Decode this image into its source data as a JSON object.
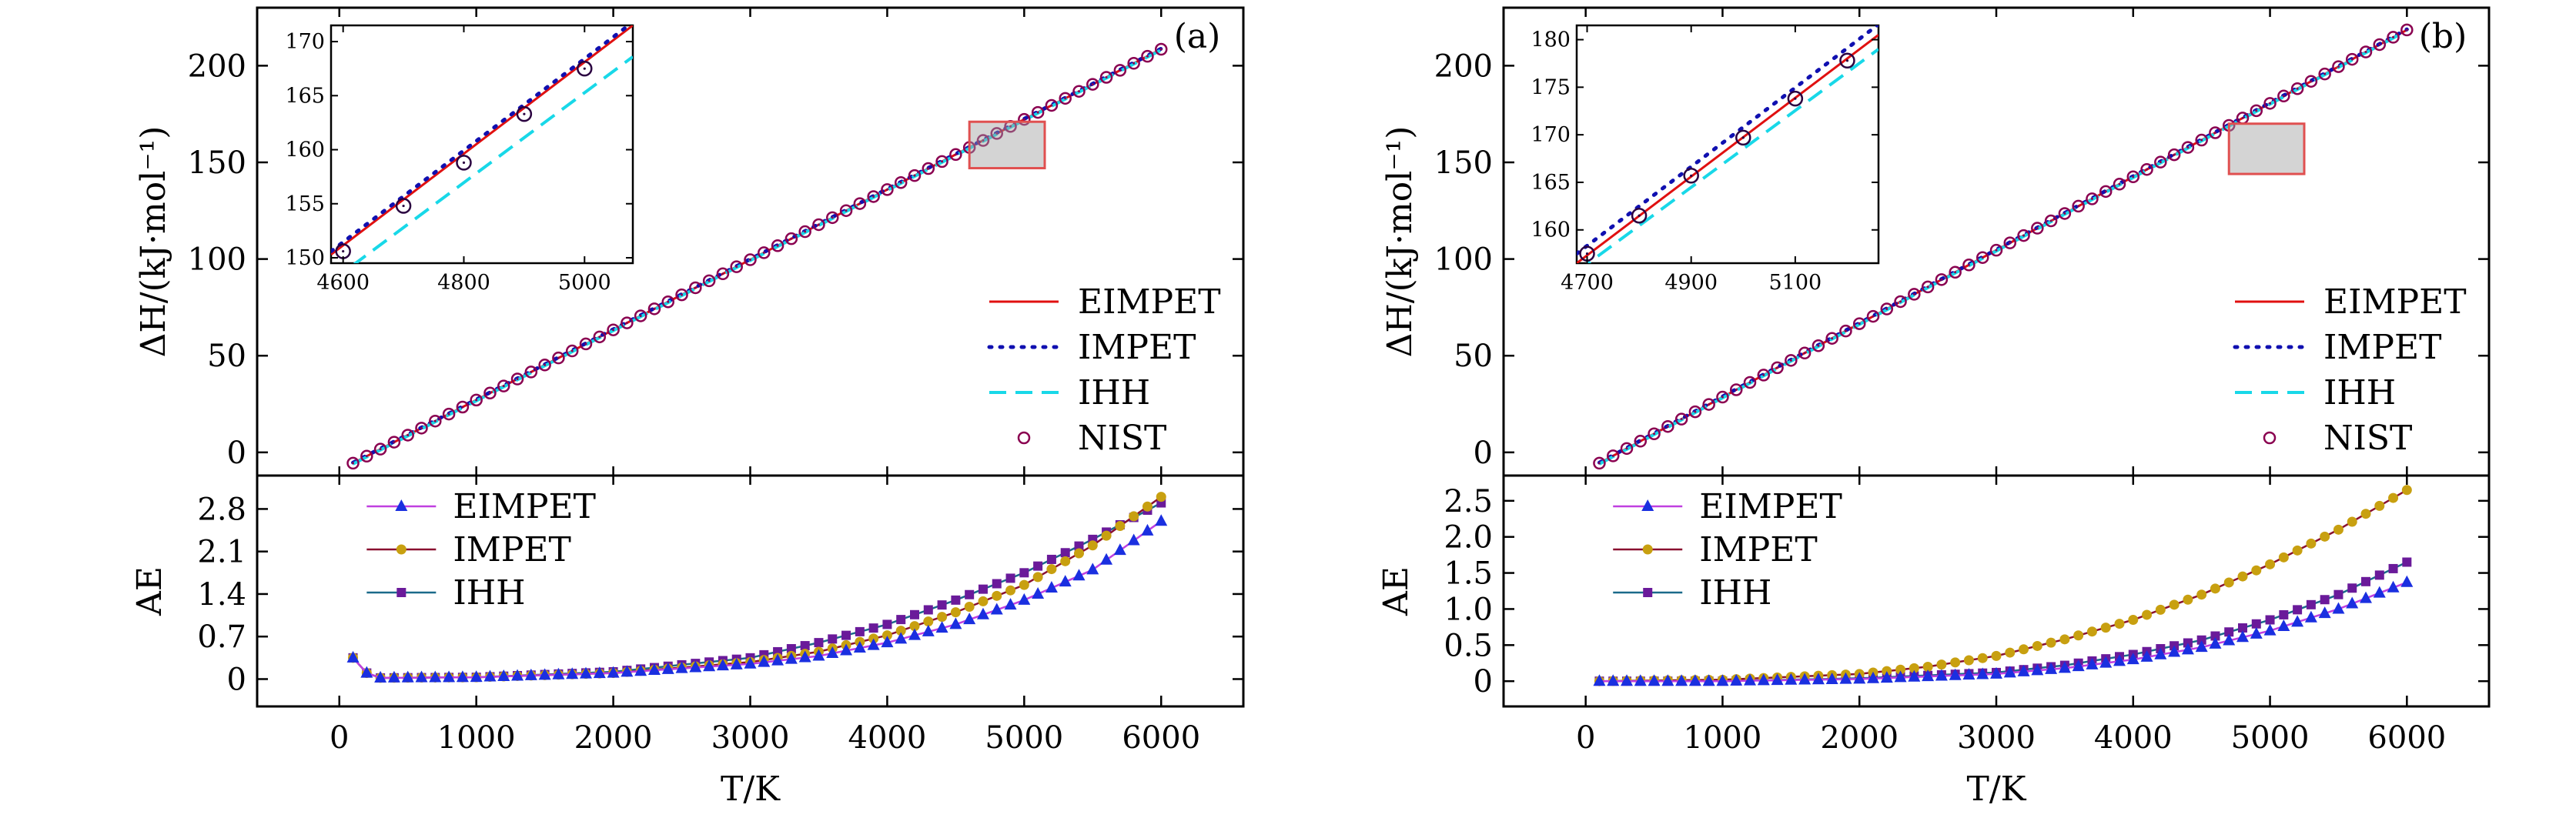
{
  "colors": {
    "EIMPET": "#e01010",
    "IMPET": "#1010b0",
    "IHH": "#18d8e8",
    "NIST": "#8a0050",
    "AE_EIMPET_marker": "#1a2fe0",
    "AE_EIMPET_line": "#c040e0",
    "AE_IMPET_marker": "#c8a010",
    "AE_IMPET_line": "#8a1030",
    "AE_IHH_marker": "#6a1a9a",
    "AE_IHH_line": "#1a6a8a",
    "zoom_box": "#e05050"
  },
  "chart_data": [
    {
      "panel_label": "(a)",
      "type": "line",
      "role": "enthalpy",
      "xlim": [
        -600,
        6600
      ],
      "ylim": [
        -12,
        230
      ],
      "yticks": [
        0,
        50,
        100,
        150,
        200
      ],
      "ylabel": "ΔH/(kJ·mol⁻¹)",
      "x_start": 100,
      "x_end": 6000,
      "y_start": -5.6,
      "y_end": 208.5,
      "series": [
        {
          "name": "EIMPET",
          "style": "solid"
        },
        {
          "name": "IMPET",
          "style": "dotted"
        },
        {
          "name": "IHH",
          "style": "dashed"
        },
        {
          "name": "NIST",
          "style": "circles"
        }
      ],
      "zoom_region": {
        "x": [
          4600,
          5150
        ],
        "y": [
          147,
          171
        ]
      },
      "inset": {
        "xlim": [
          4580,
          5080
        ],
        "ylim": [
          149.5,
          171.5
        ],
        "xticks": [
          4600,
          4800,
          5000
        ],
        "yticks": [
          150,
          155,
          160,
          165,
          170
        ],
        "EIMPET": {
          "x": [
            4580,
            5080
          ],
          "y": [
            150.3,
            171.5
          ]
        },
        "IMPET": {
          "x": [
            4580,
            5080
          ],
          "y": [
            150.6,
            171.8
          ]
        },
        "IHH": {
          "x": [
            4580,
            5080
          ],
          "y": [
            147.8,
            168.6
          ]
        },
        "NIST": {
          "x": [
            4600,
            4700,
            4800,
            4900,
            5000
          ],
          "y": [
            150.6,
            154.8,
            158.8,
            163.3,
            167.5
          ]
        }
      }
    },
    {
      "panel_label": "(a)",
      "type": "line",
      "role": "absolute-error",
      "xlim": [
        -600,
        6600
      ],
      "ylim": [
        -0.45,
        3.35
      ],
      "yticks": [
        0,
        0.7,
        1.4,
        2.1,
        2.8
      ],
      "ytick_labels": [
        "0",
        "0.7",
        "1.4",
        "2.1",
        "2.8"
      ],
      "xticks": [
        0,
        1000,
        2000,
        3000,
        4000,
        5000,
        6000
      ],
      "ylabel": "AE",
      "xlabel": "T/K",
      "series": [
        {
          "name": "EIMPET",
          "x": [
            100,
            200,
            300,
            1000,
            2000,
            3000,
            3500,
            4000,
            4500,
            5000,
            5500,
            6000
          ],
          "y": [
            0.35,
            0.1,
            0.02,
            0.03,
            0.1,
            0.25,
            0.38,
            0.6,
            0.9,
            1.3,
            1.8,
            2.6
          ]
        },
        {
          "name": "IMPET",
          "x": [
            100,
            200,
            300,
            1000,
            2000,
            3000,
            3500,
            4000,
            4500,
            5000,
            5500,
            6000
          ],
          "y": [
            0.35,
            0.1,
            0.02,
            0.03,
            0.1,
            0.28,
            0.45,
            0.72,
            1.1,
            1.55,
            2.2,
            3.0
          ]
        },
        {
          "name": "IHH",
          "x": [
            100,
            200,
            300,
            1000,
            2000,
            3000,
            3500,
            4000,
            4500,
            5000,
            5500,
            6000
          ],
          "y": [
            0.35,
            0.1,
            0.02,
            0.03,
            0.12,
            0.35,
            0.6,
            0.9,
            1.3,
            1.75,
            2.3,
            2.9
          ]
        }
      ]
    },
    {
      "panel_label": "(b)",
      "type": "line",
      "role": "enthalpy",
      "xlim": [
        -600,
        6600
      ],
      "ylim": [
        -12,
        230
      ],
      "yticks": [
        0,
        50,
        100,
        150,
        200
      ],
      "ylabel": "ΔH/(kJ·mol⁻¹)",
      "x_start": 100,
      "x_end": 6000,
      "y_start": -5.6,
      "y_end": 218.5,
      "series": [
        {
          "name": "EIMPET",
          "style": "solid"
        },
        {
          "name": "IMPET",
          "style": "dotted"
        },
        {
          "name": "IHH",
          "style": "dashed"
        },
        {
          "name": "NIST",
          "style": "circles"
        }
      ],
      "zoom_region": {
        "x": [
          4700,
          5250
        ],
        "y": [
          144,
          170
        ]
      },
      "inset": {
        "xlim": [
          4680,
          5260
        ],
        "ylim": [
          156.5,
          181.5
        ],
        "xticks": [
          4700,
          4900,
          5100
        ],
        "yticks": [
          160,
          165,
          170,
          175,
          180
        ],
        "EIMPET": {
          "x": [
            4680,
            5260
          ],
          "y": [
            156.5,
            180.5
          ]
        },
        "IMPET": {
          "x": [
            4680,
            5260
          ],
          "y": [
            157.5,
            181.6
          ]
        },
        "IHH": {
          "x": [
            4680,
            5260
          ],
          "y": [
            155.6,
            179.0
          ]
        },
        "NIST": {
          "x": [
            4700,
            4800,
            4900,
            5000,
            5100,
            5200
          ],
          "y": [
            157.5,
            161.5,
            165.7,
            169.7,
            173.8,
            177.8
          ]
        }
      }
    },
    {
      "panel_label": "(b)",
      "type": "line",
      "role": "absolute-error",
      "xlim": [
        -600,
        6600
      ],
      "ylim": [
        -0.35,
        2.85
      ],
      "yticks": [
        0,
        0.5,
        1.0,
        1.5,
        2.0,
        2.5
      ],
      "ytick_labels": [
        "0",
        "0.5",
        "1.0",
        "1.5",
        "2.0",
        "2.5"
      ],
      "xticks": [
        0,
        1000,
        2000,
        3000,
        4000,
        5000,
        6000
      ],
      "ylabel": "AE",
      "xlabel": "T/K",
      "series": [
        {
          "name": "EIMPET",
          "x": [
            100,
            1000,
            2000,
            3000,
            3500,
            4000,
            4500,
            5000,
            5500,
            6000
          ],
          "y": [
            0.0,
            0.0,
            0.03,
            0.1,
            0.18,
            0.3,
            0.47,
            0.7,
            1.0,
            1.37
          ]
        },
        {
          "name": "IMPET",
          "x": [
            100,
            1000,
            2000,
            2500,
            3000,
            3500,
            4000,
            4500,
            5000,
            5500,
            6000
          ],
          "y": [
            0.0,
            0.02,
            0.1,
            0.2,
            0.35,
            0.58,
            0.85,
            1.2,
            1.62,
            2.1,
            2.65
          ]
        },
        {
          "name": "IHH",
          "x": [
            100,
            1000,
            2000,
            3000,
            3500,
            4000,
            4500,
            5000,
            5500,
            6000
          ],
          "y": [
            0.0,
            0.0,
            0.04,
            0.12,
            0.22,
            0.37,
            0.57,
            0.85,
            1.2,
            1.65
          ]
        }
      ]
    }
  ],
  "xticks": [
    0,
    1000,
    2000,
    3000,
    4000,
    5000,
    6000
  ]
}
